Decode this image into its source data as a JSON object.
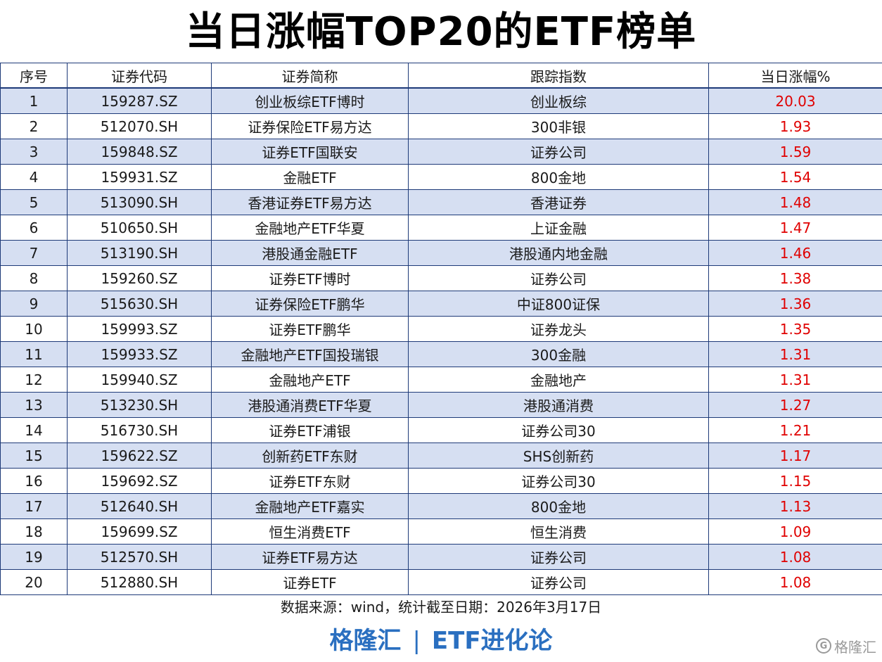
{
  "title": "当日涨幅TOP20的ETF榜单",
  "table": {
    "headers": [
      "序号",
      "证券代码",
      "证券简称",
      "跟踪指数",
      "当日涨幅%"
    ],
    "rows": [
      [
        "1",
        "159287.SZ",
        "创业板综ETF博时",
        "创业板综",
        "20.03"
      ],
      [
        "2",
        "512070.SH",
        "证券保险ETF易方达",
        "300非银",
        "1.93"
      ],
      [
        "3",
        "159848.SZ",
        "证券ETF国联安",
        "证券公司",
        "1.59"
      ],
      [
        "4",
        "159931.SZ",
        "金融ETF",
        "800金地",
        "1.54"
      ],
      [
        "5",
        "513090.SH",
        "香港证券ETF易方达",
        "香港证券",
        "1.48"
      ],
      [
        "6",
        "510650.SH",
        "金融地产ETF华夏",
        "上证金融",
        "1.47"
      ],
      [
        "7",
        "513190.SH",
        "港股通金融ETF",
        "港股通内地金融",
        "1.46"
      ],
      [
        "8",
        "159260.SZ",
        "证券ETF博时",
        "证券公司",
        "1.38"
      ],
      [
        "9",
        "515630.SH",
        "证券保险ETF鹏华",
        "中证800证保",
        "1.36"
      ],
      [
        "10",
        "159993.SZ",
        "证券ETF鹏华",
        "证券龙头",
        "1.35"
      ],
      [
        "11",
        "159933.SZ",
        "金融地产ETF国投瑞银",
        "300金融",
        "1.31"
      ],
      [
        "12",
        "159940.SZ",
        "金融地产ETF",
        "金融地产",
        "1.31"
      ],
      [
        "13",
        "513230.SH",
        "港股通消费ETF华夏",
        "港股通消费",
        "1.27"
      ],
      [
        "14",
        "516730.SH",
        "证券ETF浦银",
        "证券公司30",
        "1.21"
      ],
      [
        "15",
        "159622.SZ",
        "创新药ETF东财",
        "SHS创新药",
        "1.17"
      ],
      [
        "16",
        "159692.SZ",
        "证券ETF东财",
        "证券公司30",
        "1.15"
      ],
      [
        "17",
        "512640.SH",
        "金融地产ETF嘉实",
        "800金地",
        "1.13"
      ],
      [
        "18",
        "159699.SZ",
        "恒生消费ETF",
        "恒生消费",
        "1.09"
      ],
      [
        "19",
        "512570.SH",
        "证券ETF易方达",
        "证券公司",
        "1.08"
      ],
      [
        "20",
        "512880.SH",
        "证券ETF",
        "证券公司",
        "1.08"
      ]
    ]
  },
  "source": "数据来源：wind，统计截至日期：2026年3月17日",
  "footer": {
    "brand_left": "格隆汇",
    "separator": "|",
    "brand_right": "ETF进化论"
  },
  "watermark": {
    "icon": "gelonghui-logo-icon",
    "text": "格隆汇"
  },
  "colors": {
    "row_stripe": "#d6dff2",
    "border": "#1e3a78",
    "change_text": "#e00000",
    "brand_text": "#2a6fc0"
  }
}
